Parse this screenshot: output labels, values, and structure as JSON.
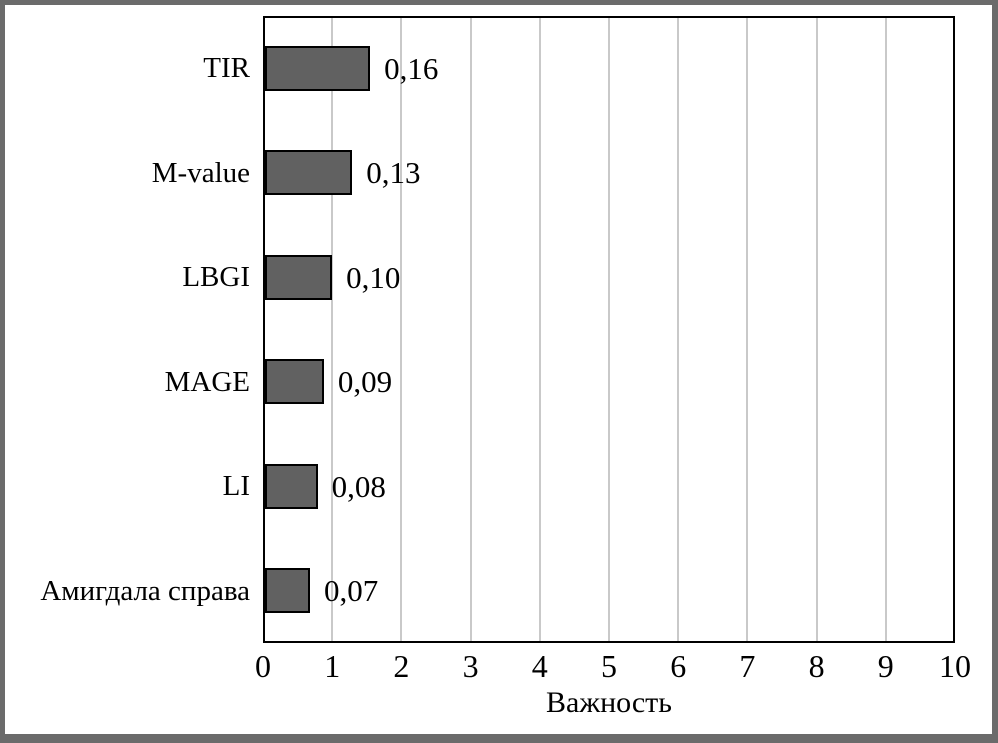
{
  "chart_data": {
    "type": "bar",
    "orientation": "horizontal",
    "title": "",
    "categories": [
      "TIR",
      "M-value",
      "LBGI",
      "MAGE",
      "LI",
      "Амигдала справа"
    ],
    "values": [
      0.16,
      0.13,
      0.1,
      0.09,
      0.08,
      0.07
    ],
    "value_labels": [
      "0,16",
      "0,13",
      "0,10",
      "0,09",
      "0,08",
      "0,07"
    ],
    "bar_extents_axis_units": [
      1.52,
      1.26,
      0.97,
      0.85,
      0.76,
      0.65
    ],
    "xlabel": "Важность",
    "x_ticks": [
      "0",
      "1",
      "2",
      "3",
      "4",
      "5",
      "6",
      "7",
      "8",
      "9",
      "10"
    ],
    "xlim": [
      0,
      10
    ],
    "grid": "vertical-gridlines",
    "legend": "none",
    "colors": {
      "bar_fill": "#616161",
      "bar_border": "#000000",
      "gridline": "#c9c9c9",
      "plot_border": "#000000",
      "frame": "#6b6b6b",
      "background": "#ffffff",
      "text": "#000000"
    }
  }
}
